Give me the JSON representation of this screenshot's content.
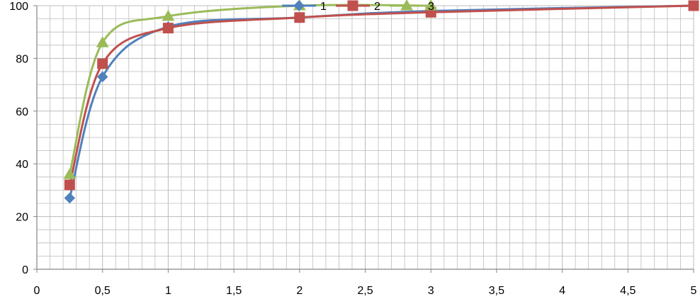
{
  "chart_data": {
    "type": "line",
    "title": "",
    "xlabel": "",
    "ylabel": "",
    "xlim": [
      0,
      5
    ],
    "ylim": [
      0,
      100
    ],
    "grid": true,
    "smooth": true,
    "legend_position": "top",
    "x_ticks": [
      "0",
      "0,5",
      "1",
      "1,5",
      "2",
      "2,5",
      "3",
      "3,5",
      "4",
      "4,5",
      "5"
    ],
    "y_ticks": [
      "0",
      "20",
      "40",
      "60",
      "80",
      "100"
    ],
    "series": [
      {
        "name": "1",
        "color": "#4f81bd",
        "marker": "diamond",
        "points": [
          {
            "x": 0.25,
            "y": 27
          },
          {
            "x": 0.5,
            "y": 73
          },
          {
            "x": 1,
            "y": 92
          },
          {
            "x": 2,
            "y": 95.5
          },
          {
            "x": 3,
            "y": 98
          },
          {
            "x": 5,
            "y": 100
          }
        ]
      },
      {
        "name": "2",
        "color": "#c0504d",
        "marker": "square",
        "points": [
          {
            "x": 0.25,
            "y": 32
          },
          {
            "x": 0.5,
            "y": 78
          },
          {
            "x": 1,
            "y": 91.5
          },
          {
            "x": 2,
            "y": 95.5
          },
          {
            "x": 3,
            "y": 97.5
          },
          {
            "x": 5,
            "y": 100
          }
        ]
      },
      {
        "name": "3",
        "color": "#9bbb59",
        "marker": "triangle",
        "points": [
          {
            "x": 0.25,
            "y": 36
          },
          {
            "x": 0.5,
            "y": 86
          },
          {
            "x": 1,
            "y": 96
          },
          {
            "x": 2,
            "y": 100
          },
          {
            "x": 3,
            "y": 100
          }
        ]
      }
    ]
  }
}
